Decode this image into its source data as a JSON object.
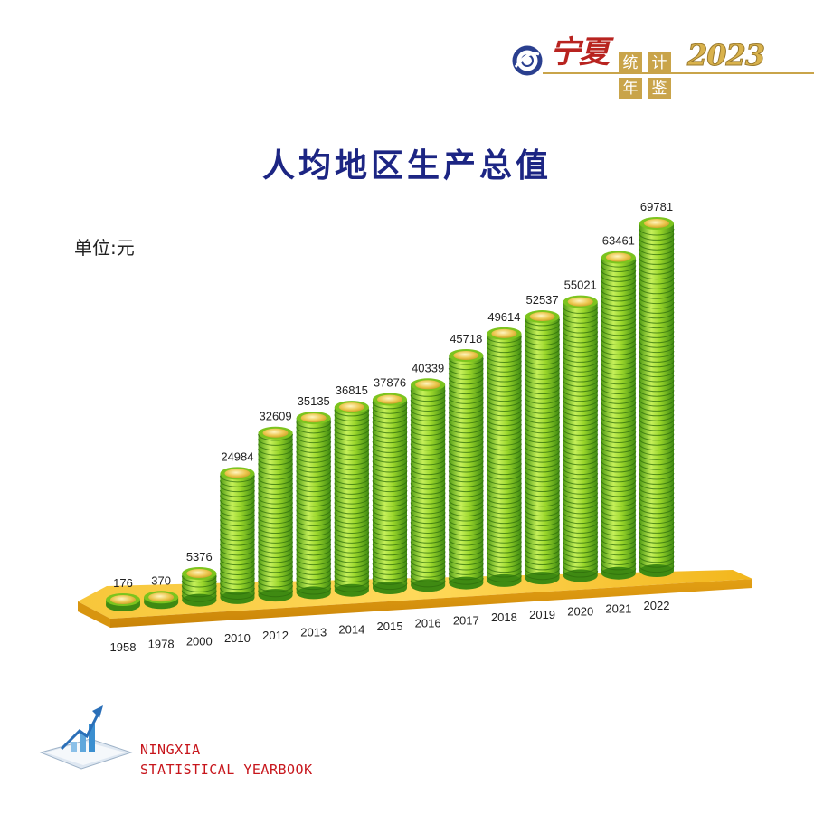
{
  "header": {
    "brand_name": "宁夏",
    "book_chars": [
      "统",
      "计",
      "年",
      "鉴"
    ],
    "year": "2023"
  },
  "title": "人均地区生产总值",
  "unit_label": "单位:元",
  "footer": {
    "line1": "NINGXIA",
    "line2": "STATISTICAL YEARBOOK"
  },
  "colors": {
    "title": "#1c2583",
    "coin_green": "#8fd12c",
    "coin_green_dark": "#3f8a12",
    "coin_gold": "#e9c24a",
    "platform_gold": "#f0b920",
    "brand_red": "#b8231f",
    "footer_red": "#c7161c"
  },
  "chart_data": {
    "type": "bar",
    "title": "人均地区生产总值",
    "unit": "元",
    "categories": [
      "1958",
      "1978",
      "2000",
      "2010",
      "2012",
      "2013",
      "2014",
      "2015",
      "2016",
      "2017",
      "2018",
      "2019",
      "2020",
      "2021",
      "2022"
    ],
    "values": [
      176,
      370,
      5376,
      24984,
      32609,
      35135,
      36815,
      37876,
      40339,
      45718,
      49614,
      52537,
      55021,
      63461,
      69781
    ],
    "value_labels": [
      "176",
      "370",
      "5376",
      "24984",
      "32609",
      "35135",
      "36815",
      "37876",
      "40339",
      "45718",
      "49614",
      "52537",
      "55021",
      "63461",
      "69781"
    ],
    "ylim": [
      0,
      69781
    ],
    "style": "stacked-coins"
  }
}
